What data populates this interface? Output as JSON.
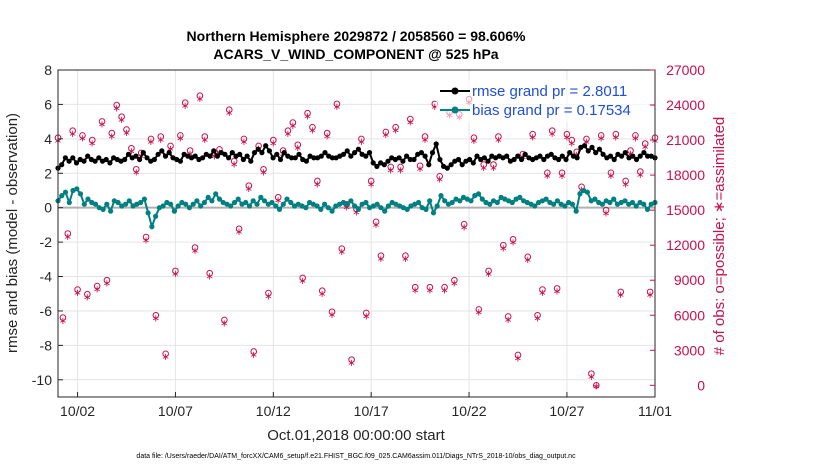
{
  "chart_data": {
    "type": "line",
    "title_line1": "Northern Hemisphere 2029872 / 2058560 = 98.606%",
    "title_line2": "ACARS_V_WIND_COMPONENT @ 525 hPa",
    "xlabel": "Oct.01,2018 00:00:00 start",
    "ylabel_left": "rmse and bias (model - observation)",
    "ylabel_right": "# of obs: o=possible; ∗=assimilated",
    "footer": "data file: /Users/raeder/DAI/ATM_forcXX/CAM6_setup/f.e21.FHIST_BGC.f09_025.CAM6assim.011/Diags_NTrS_2018-10/obs_diag_output.nc",
    "x_range_days": [
      0.5,
      31
    ],
    "x_ticks": [
      {
        "day": 1.5,
        "label": "10/02"
      },
      {
        "day": 6.5,
        "label": "10/07"
      },
      {
        "day": 11.5,
        "label": "10/12"
      },
      {
        "day": 16.5,
        "label": "10/17"
      },
      {
        "day": 21.5,
        "label": "10/22"
      },
      {
        "day": 26.5,
        "label": "10/27"
      },
      {
        "day": 31,
        "label": "11/01"
      }
    ],
    "ylim_left": [
      -11,
      8
    ],
    "yticks_left": [
      "8",
      "6",
      "4",
      "2",
      "0",
      "-2",
      "-4",
      "-6",
      "-8",
      "-10"
    ],
    "ytick_values_left": [
      8,
      6,
      4,
      2,
      0,
      -2,
      -4,
      -6,
      -8,
      -10
    ],
    "ylim_right": [
      -1000,
      27000
    ],
    "yticks_right": [
      "27000",
      "24000",
      "21000",
      "18000",
      "15000",
      "12000",
      "9000",
      "6000",
      "3000",
      "0"
    ],
    "ytick_values_right": [
      27000,
      24000,
      21000,
      18000,
      15000,
      12000,
      9000,
      6000,
      3000,
      0
    ],
    "grid": true,
    "legend_position": "top-right",
    "colors": {
      "rmse": "#000000",
      "bias": "#008080",
      "obs": "#c8104e",
      "zero": "#b0b0b0",
      "grid": "#e4e4e4"
    },
    "series": [
      {
        "name": "rmse grand pr = 2.8011",
        "values": [
          2.3,
          2.5,
          2.9,
          2.7,
          2.9,
          2.6,
          2.8,
          2.7,
          3.0,
          2.8,
          2.7,
          2.9,
          2.7,
          2.8,
          2.6,
          2.9,
          2.8,
          2.7,
          2.8,
          3.1,
          2.9,
          3.0,
          2.8,
          3.2,
          2.9,
          2.7,
          2.8,
          3.1,
          3.3,
          3.0,
          3.2,
          2.9,
          2.8,
          2.7,
          3.1,
          3.0,
          2.9,
          3.0,
          2.8,
          2.9,
          3.1,
          3.0,
          3.3,
          3.0,
          3.2,
          3.1,
          2.9,
          3.2,
          3.0,
          3.1,
          2.8,
          3.0,
          2.7,
          3.2,
          3.4,
          3.2,
          3.6,
          3.3,
          2.9,
          3.1,
          2.8,
          3.2,
          3.0,
          2.9,
          2.9,
          3.1,
          2.8,
          2.7,
          3.0,
          2.9,
          2.9,
          3.0,
          3.2,
          3.0,
          2.9,
          2.9,
          3.0,
          3.1,
          3.3,
          3.0,
          3.2,
          3.4,
          3.1,
          3.0,
          3.2,
          2.6,
          2.4,
          2.6,
          2.5,
          2.7,
          2.9,
          2.8,
          2.9,
          2.7,
          3.0,
          2.8,
          2.8,
          3.1,
          3.2,
          3.0,
          2.5,
          3.2,
          3.7,
          2.8,
          2.4,
          2.3,
          2.5,
          2.7,
          2.8,
          2.5,
          2.7,
          2.8,
          2.6,
          3.0,
          2.8,
          2.9,
          2.7,
          3.0,
          2.9,
          3.0,
          2.9,
          3.0,
          2.7,
          2.8,
          3.0,
          2.8,
          3.1,
          2.9,
          2.8,
          2.9,
          3.0,
          2.8,
          3.0,
          3.1,
          2.9,
          2.8,
          3.0,
          2.8,
          3.2,
          3.0,
          2.9,
          3.5,
          3.6,
          3.3,
          3.5,
          3.2,
          3.4,
          3.1,
          2.9,
          3.0,
          2.8,
          3.1,
          3.0,
          3.2,
          2.9,
          3.0,
          2.8,
          3.0,
          3.2,
          3.0,
          3.0,
          2.9
        ]
      },
      {
        "name": "bias grand pr = 0.17534",
        "values": [
          0.4,
          0.7,
          0.9,
          0.3,
          1.0,
          1.1,
          0.8,
          0.2,
          0.5,
          0.3,
          0.2,
          0.0,
          -0.1,
          0.2,
          -0.2,
          0.4,
          0.3,
          0.1,
          0.2,
          0.4,
          0.1,
          0.2,
          0.3,
          0.5,
          -0.3,
          -1.1,
          -0.5,
          0.0,
          0.1,
          0.3,
          0.2,
          -0.2,
          0.1,
          0.3,
          0.2,
          0.0,
          0.2,
          0.4,
          0.1,
          0.3,
          0.6,
          0.4,
          0.8,
          0.5,
          0.3,
          0.2,
          0.1,
          0.3,
          0.5,
          0.2,
          0.3,
          0.1,
          0.4,
          0.2,
          0.6,
          0.4,
          0.2,
          0.3,
          0.1,
          -0.1,
          0.2,
          0.5,
          0.3,
          0.1,
          0.2,
          0.1,
          0.0,
          0.3,
          0.2,
          0.1,
          -0.1,
          0.2,
          0.0,
          -0.2,
          0.1,
          0.2,
          0.3,
          0.2,
          0.4,
          0.1,
          -0.1,
          0.2,
          0.3,
          0.0,
          0.1,
          0.2,
          0.0,
          -0.2,
          0.1,
          0.3,
          0.2,
          0.1,
          0.0,
          -0.1,
          0.1,
          0.2,
          0.3,
          0.0,
          -0.1,
          0.4,
          -0.3,
          0.1,
          0.7,
          0.4,
          0.2,
          0.3,
          0.5,
          0.4,
          0.6,
          0.5,
          0.4,
          0.7,
          0.8,
          0.5,
          0.3,
          0.2,
          0.4,
          0.3,
          0.6,
          0.5,
          0.4,
          0.3,
          0.5,
          0.6,
          0.4,
          0.3,
          0.2,
          0.1,
          0.3,
          0.4,
          0.5,
          0.3,
          0.2,
          0.4,
          0.2,
          0.1,
          0.3,
          0.2,
          -0.2,
          0.8,
          1.0,
          0.9,
          0.4,
          0.5,
          0.3,
          0.2,
          0.4,
          0.3,
          0.5,
          0.2,
          0.3,
          0.4,
          0.2,
          0.3,
          0.1,
          0.3,
          0.2,
          -0.1,
          0.2,
          0.3
        ]
      }
    ],
    "obs_counts": {
      "days": [
        0.5,
        0.75,
        1.0,
        1.25,
        1.5,
        1.75,
        2.0,
        2.25,
        2.5,
        2.75,
        3.0,
        3.25,
        3.5,
        3.75,
        4.0,
        4.25,
        4.5,
        4.75,
        5.0,
        5.25,
        5.5,
        5.75,
        6.0,
        6.25,
        6.5,
        6.75,
        7.0,
        7.25,
        7.5,
        7.75,
        8.0,
        8.25,
        8.5,
        8.75,
        9.0,
        9.25,
        9.5,
        9.75,
        10.0,
        10.25,
        10.5,
        10.75,
        11.0,
        11.25,
        11.5,
        11.75,
        12.0,
        12.25,
        12.5,
        12.75,
        13.0,
        13.25,
        13.5,
        13.75,
        14.0,
        14.25,
        14.5,
        14.75,
        15.0,
        15.25,
        15.5,
        15.75,
        16.0,
        16.25,
        16.5,
        16.75,
        17.0,
        17.25,
        17.5,
        17.75,
        18.0,
        18.25,
        18.5,
        18.75,
        19.0,
        19.25,
        19.5,
        19.75,
        20.0,
        20.25,
        20.5,
        20.75,
        21.0,
        21.25,
        21.5,
        21.75,
        22.0,
        22.25,
        22.5,
        22.75,
        23.0,
        23.25,
        23.5,
        23.75,
        24.0,
        24.25,
        24.5,
        24.75,
        25.0,
        25.25,
        25.5,
        25.75,
        26.0,
        26.25,
        26.5,
        26.75,
        27.0,
        27.25,
        27.5,
        27.75,
        28.0,
        28.25,
        28.5,
        28.75,
        29.0,
        29.25,
        29.5,
        29.75,
        30.0,
        30.25,
        30.5,
        30.75,
        31.0
      ],
      "possible": [
        21200,
        5800,
        13000,
        21800,
        8200,
        21400,
        7800,
        21000,
        8500,
        22600,
        9000,
        21600,
        24000,
        23000,
        21900,
        20300,
        18500,
        19900,
        12700,
        21100,
        6000,
        21300,
        2700,
        20500,
        9800,
        21400,
        24200,
        20100,
        11800,
        24800,
        21300,
        9600,
        19900,
        20200,
        5600,
        23600,
        19200,
        13400,
        21100,
        17100,
        2900,
        20500,
        18500,
        7900,
        21000,
        16100,
        20100,
        21800,
        22500,
        20600,
        9200,
        23300,
        22100,
        17500,
        8100,
        21600,
        6300,
        24100,
        11700,
        15500,
        2200,
        15100,
        21100,
        6200,
        17500,
        14000,
        11100,
        21700,
        18700,
        22100,
        18700,
        11100,
        22800,
        8400,
        18800,
        21300,
        8400,
        24100,
        17900,
        8400,
        23400,
        9000,
        23200,
        13800,
        24500,
        21200,
        6500,
        18900,
        9800,
        18900,
        21300,
        12000,
        5900,
        12500,
        2600,
        19800,
        11000,
        21500,
        6000,
        8200,
        18200,
        21800,
        8300,
        18200,
        21500,
        21000,
        20000,
        17000,
        21100,
        1000,
        0,
        21400,
        15000,
        18200,
        21500,
        8000,
        17500,
        20100,
        21400,
        18300,
        20700,
        8000,
        21200,
        18100,
        21300,
        18300,
        0
      ],
      "assimilated": [
        21000,
        5600,
        12800,
        21600,
        8000,
        21200,
        7600,
        20800,
        8300,
        22400,
        8800,
        21400,
        23800,
        22800,
        21700,
        20100,
        18300,
        19700,
        12500,
        20900,
        5800,
        21100,
        2500,
        20300,
        9600,
        21200,
        24000,
        19900,
        11600,
        24600,
        21100,
        9400,
        19700,
        20000,
        5400,
        23400,
        19000,
        13200,
        20900,
        16900,
        2700,
        20300,
        18300,
        7700,
        20800,
        15900,
        19900,
        21600,
        22300,
        20400,
        9000,
        23100,
        21900,
        17300,
        7900,
        21400,
        6100,
        23900,
        11500,
        15300,
        2000,
        14900,
        20900,
        6000,
        17300,
        13800,
        10900,
        21500,
        18500,
        21900,
        18500,
        10900,
        22600,
        8200,
        18600,
        21100,
        8200,
        23900,
        17700,
        8200,
        23200,
        8800,
        23000,
        13600,
        24300,
        21000,
        6300,
        18700,
        9600,
        18700,
        21100,
        11800,
        5700,
        12300,
        2400,
        19600,
        10800,
        21300,
        5800,
        8000,
        18000,
        21600,
        8100,
        18000,
        21300,
        20800,
        19800,
        16800,
        20900,
        800,
        0,
        21200,
        14800,
        18000,
        21300,
        7800,
        17300,
        19900,
        21200,
        18100,
        20500,
        7800,
        21000,
        17900,
        21100,
        18100,
        0
      ]
    }
  }
}
